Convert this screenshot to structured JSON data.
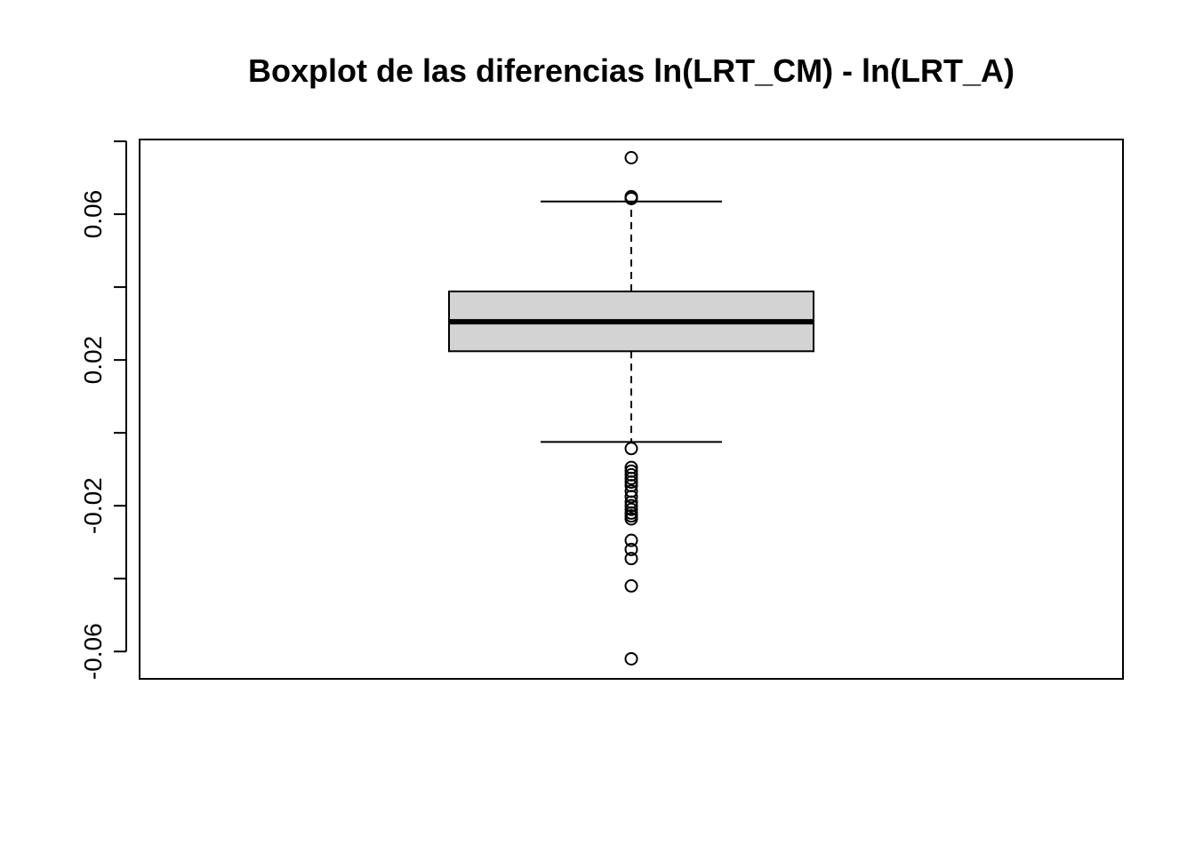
{
  "chart_data": {
    "type": "boxplot",
    "title": "Boxplot de las diferencias ln(LRT_CM) - ln(LRT_A)",
    "xlabel": "",
    "ylabel": "",
    "ylim": [
      -0.0675,
      0.0805
    ],
    "y_ticks": [
      -0.06,
      -0.04,
      -0.02,
      0.0,
      0.02,
      0.04,
      0.06,
      0.08
    ],
    "y_tick_labels": [
      "-0.06",
      "",
      "-0.02",
      "",
      "0.02",
      "",
      "0.06",
      ""
    ],
    "grid": false,
    "box": {
      "q1": 0.0224,
      "median": 0.0305,
      "q3": 0.0388,
      "whisker_low": -0.0025,
      "whisker_high": 0.0635
    },
    "outliers": [
      0.0755,
      0.0648,
      0.0643,
      -0.0043,
      -0.0095,
      -0.0105,
      -0.0115,
      -0.0125,
      -0.0135,
      -0.0145,
      -0.016,
      -0.0175,
      -0.019,
      -0.02,
      -0.021,
      -0.022,
      -0.0228,
      -0.0236,
      -0.0295,
      -0.032,
      -0.0345,
      -0.042,
      -0.062
    ],
    "colors": {
      "box_fill": "#d3d3d3",
      "stroke": "#000000"
    }
  }
}
